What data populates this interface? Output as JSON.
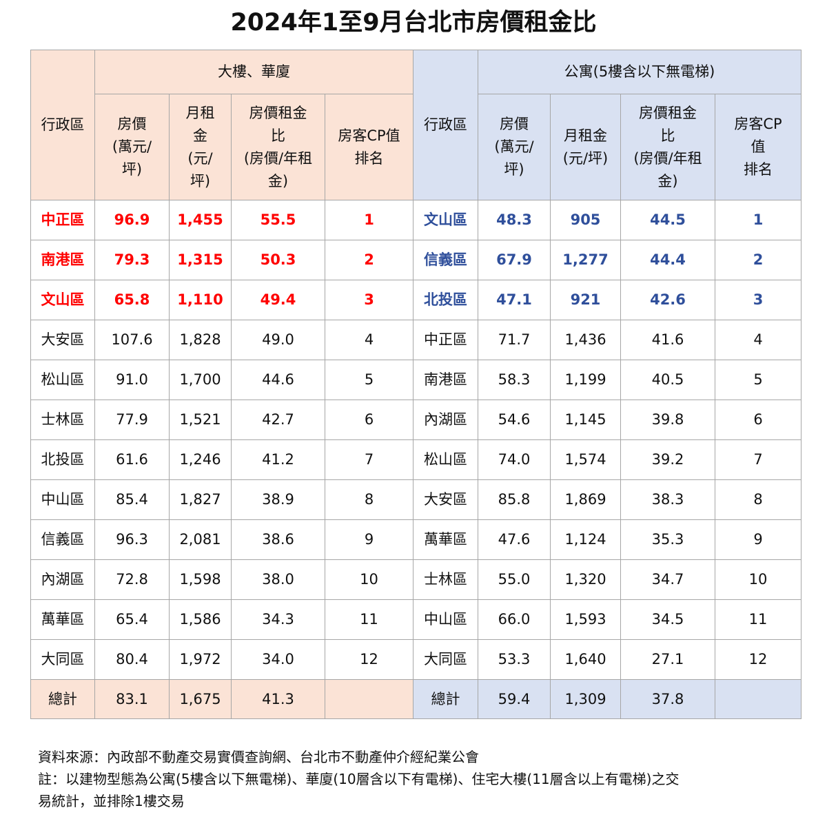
{
  "title": "2024年1至9月台北市房價租金比",
  "left_group": "大樓、華廈",
  "right_group": "公寓(5樓含以下無電梯)",
  "headers": {
    "district": "行政區",
    "price_l": [
      "房價",
      "(萬元/",
      "坪)"
    ],
    "rent_l": [
      "月租",
      "金",
      "(元/",
      "坪)"
    ],
    "ratio_l": [
      "房價租金",
      "比",
      "(房價/年租",
      "金)"
    ],
    "rank_l": [
      "房客CP值",
      "排名"
    ],
    "price_r": [
      "房價",
      "(萬元/",
      "坪)"
    ],
    "rent_r": [
      "月租金",
      "(元/坪)"
    ],
    "ratio_r": [
      "房價租金",
      "比",
      "(房價/年租",
      "金)"
    ],
    "rank_r": [
      "房客CP",
      "值",
      "排名"
    ]
  },
  "rows": [
    {
      "ld": "中正區",
      "lp": "96.9",
      "lr": "1,455",
      "lx": "55.5",
      "lk": "1",
      "rd": "文山區",
      "rp": "48.3",
      "rr": "905",
      "rx": "44.5",
      "rk": "1",
      "top": true
    },
    {
      "ld": "南港區",
      "lp": "79.3",
      "lr": "1,315",
      "lx": "50.3",
      "lk": "2",
      "rd": "信義區",
      "rp": "67.9",
      "rr": "1,277",
      "rx": "44.4",
      "rk": "2",
      "top": true
    },
    {
      "ld": "文山區",
      "lp": "65.8",
      "lr": "1,110",
      "lx": "49.4",
      "lk": "3",
      "rd": "北投區",
      "rp": "47.1",
      "rr": "921",
      "rx": "42.6",
      "rk": "3",
      "top": true
    },
    {
      "ld": "大安區",
      "lp": "107.6",
      "lr": "1,828",
      "lx": "49.0",
      "lk": "4",
      "rd": "中正區",
      "rp": "71.7",
      "rr": "1,436",
      "rx": "41.6",
      "rk": "4",
      "top": false
    },
    {
      "ld": "松山區",
      "lp": "91.0",
      "lr": "1,700",
      "lx": "44.6",
      "lk": "5",
      "rd": "南港區",
      "rp": "58.3",
      "rr": "1,199",
      "rx": "40.5",
      "rk": "5",
      "top": false
    },
    {
      "ld": "士林區",
      "lp": "77.9",
      "lr": "1,521",
      "lx": "42.7",
      "lk": "6",
      "rd": "內湖區",
      "rp": "54.6",
      "rr": "1,145",
      "rx": "39.8",
      "rk": "6",
      "top": false
    },
    {
      "ld": "北投區",
      "lp": "61.6",
      "lr": "1,246",
      "lx": "41.2",
      "lk": "7",
      "rd": "松山區",
      "rp": "74.0",
      "rr": "1,574",
      "rx": "39.2",
      "rk": "7",
      "top": false
    },
    {
      "ld": "中山區",
      "lp": "85.4",
      "lr": "1,827",
      "lx": "38.9",
      "lk": "8",
      "rd": "大安區",
      "rp": "85.8",
      "rr": "1,869",
      "rx": "38.3",
      "rk": "8",
      "top": false
    },
    {
      "ld": "信義區",
      "lp": "96.3",
      "lr": "2,081",
      "lx": "38.6",
      "lk": "9",
      "rd": "萬華區",
      "rp": "47.6",
      "rr": "1,124",
      "rx": "35.3",
      "rk": "9",
      "top": false
    },
    {
      "ld": "內湖區",
      "lp": "72.8",
      "lr": "1,598",
      "lx": "38.0",
      "lk": "10",
      "rd": "士林區",
      "rp": "55.0",
      "rr": "1,320",
      "rx": "34.7",
      "rk": "10",
      "top": false
    },
    {
      "ld": "萬華區",
      "lp": "65.4",
      "lr": "1,586",
      "lx": "34.3",
      "lk": "11",
      "rd": "中山區",
      "rp": "66.0",
      "rr": "1,593",
      "rx": "34.5",
      "rk": "11",
      "top": false
    },
    {
      "ld": "大同區",
      "lp": "80.4",
      "lr": "1,972",
      "lx": "34.0",
      "lk": "12",
      "rd": "大同區",
      "rp": "53.3",
      "rr": "1,640",
      "rx": "27.1",
      "rk": "12",
      "top": false
    }
  ],
  "total": {
    "label": "總計",
    "lp": "83.1",
    "lr": "1,675",
    "lx": "41.3",
    "rp": "59.4",
    "rr": "1,309",
    "rx": "37.8"
  },
  "footer": {
    "source": "資料來源：內政部不動產交易實價查詢網、台北市不動產仲介經紀業公會",
    "note_line1": "註：以建物型態為公寓(5樓含以下無電梯)、華廈(10層含以下有電梯)、住宅大樓(11層含以上有電梯)之交",
    "note_line2": "易統計，並排除1樓交易"
  },
  "colors": {
    "left_header_bg": "#fbe3d6",
    "right_header_bg": "#d9e1f2",
    "top_left_text": "#ff0000",
    "top_right_text": "#2f4f9b",
    "border": "#a6a6a6"
  }
}
